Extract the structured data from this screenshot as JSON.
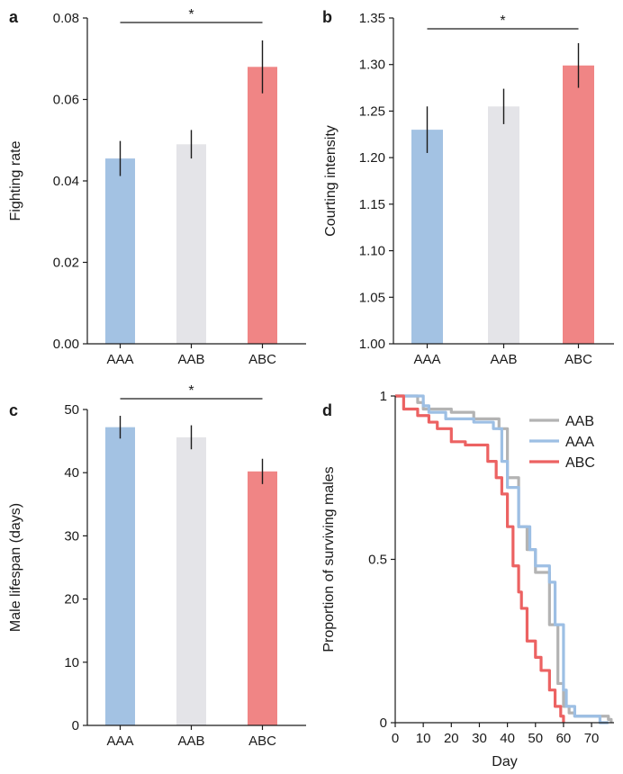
{
  "colors": {
    "AAA": "#a3c2e3",
    "AAB": "#e4e4e8",
    "ABC": "#f08585",
    "AAB_line": "#b3b3b3",
    "AAA_line": "#9dbfe4",
    "ABC_line": "#ec6262"
  },
  "chart_data": [
    {
      "panel": "a",
      "type": "bar",
      "ylabel": "Fighting rate",
      "categories": [
        "AAA",
        "AAB",
        "ABC"
      ],
      "values": [
        0.0455,
        0.049,
        0.068
      ],
      "errors": [
        0.0043,
        0.0035,
        0.0065
      ],
      "ylim": [
        0,
        0.08
      ],
      "yticks": [
        "0.00",
        "0.02",
        "0.04",
        "0.06",
        "0.08"
      ],
      "significance": {
        "from": "AAA",
        "to": "ABC",
        "label": "*"
      }
    },
    {
      "panel": "b",
      "type": "bar",
      "ylabel": "Courting intensity",
      "categories": [
        "AAA",
        "AAB",
        "ABC"
      ],
      "values": [
        1.23,
        1.255,
        1.299
      ],
      "errors": [
        0.025,
        0.019,
        0.024
      ],
      "ylim": [
        1.0,
        1.35
      ],
      "yticks": [
        "1.00",
        "1.05",
        "1.10",
        "1.15",
        "1.20",
        "1.25",
        "1.30",
        "1.35"
      ],
      "significance": {
        "from": "AAA",
        "to": "ABC",
        "label": "*"
      }
    },
    {
      "panel": "c",
      "type": "bar",
      "ylabel": "Male lifespan (days)",
      "categories": [
        "AAA",
        "AAB",
        "ABC"
      ],
      "values": [
        47.2,
        45.6,
        40.2
      ],
      "errors": [
        1.8,
        1.9,
        2.0
      ],
      "ylim": [
        0,
        50
      ],
      "yticks": [
        "0",
        "10",
        "20",
        "30",
        "40",
        "50"
      ],
      "significance": {
        "from": "AAA",
        "to": "ABC",
        "label": "*"
      }
    },
    {
      "panel": "d",
      "type": "line",
      "xlabel": "Day",
      "ylabel": "Proportion of surviving males",
      "xlim": [
        0,
        78
      ],
      "ylim": [
        0,
        1
      ],
      "xticks": [
        "0",
        "10",
        "20",
        "30",
        "40",
        "50",
        "60",
        "70"
      ],
      "yticks": [
        "0",
        "0.5",
        "1"
      ],
      "legend_position": "top-right",
      "series": [
        {
          "name": "AAB",
          "x": [
            0,
            5,
            8,
            10,
            20,
            28,
            33,
            37,
            40,
            44,
            47,
            50,
            55,
            58,
            60,
            62,
            64,
            68,
            71,
            73,
            76,
            77
          ],
          "y": [
            1.0,
            1.0,
            0.98,
            0.96,
            0.95,
            0.93,
            0.93,
            0.9,
            0.75,
            0.6,
            0.53,
            0.46,
            0.3,
            0.12,
            0.05,
            0.03,
            0.02,
            0.02,
            0.02,
            0.02,
            0.01,
            0.0
          ]
        },
        {
          "name": "AAA",
          "x": [
            0,
            5,
            10,
            12,
            18,
            20,
            28,
            32,
            35,
            38,
            40,
            44,
            48,
            50,
            55,
            57,
            60,
            61,
            64,
            66,
            70,
            73,
            76
          ],
          "y": [
            1.0,
            1.0,
            0.97,
            0.95,
            0.93,
            0.93,
            0.92,
            0.92,
            0.9,
            0.8,
            0.72,
            0.6,
            0.53,
            0.48,
            0.43,
            0.3,
            0.1,
            0.05,
            0.02,
            0.02,
            0.02,
            0.0,
            0.0
          ]
        },
        {
          "name": "ABC",
          "x": [
            0,
            3,
            5,
            8,
            12,
            15,
            20,
            25,
            30,
            33,
            36,
            38,
            40,
            42,
            44,
            45,
            47,
            50,
            52,
            55,
            57,
            59,
            60
          ],
          "y": [
            1.0,
            0.96,
            0.96,
            0.94,
            0.92,
            0.9,
            0.86,
            0.85,
            0.85,
            0.8,
            0.75,
            0.7,
            0.6,
            0.48,
            0.4,
            0.35,
            0.25,
            0.2,
            0.16,
            0.1,
            0.05,
            0.02,
            0.0
          ]
        }
      ]
    }
  ]
}
